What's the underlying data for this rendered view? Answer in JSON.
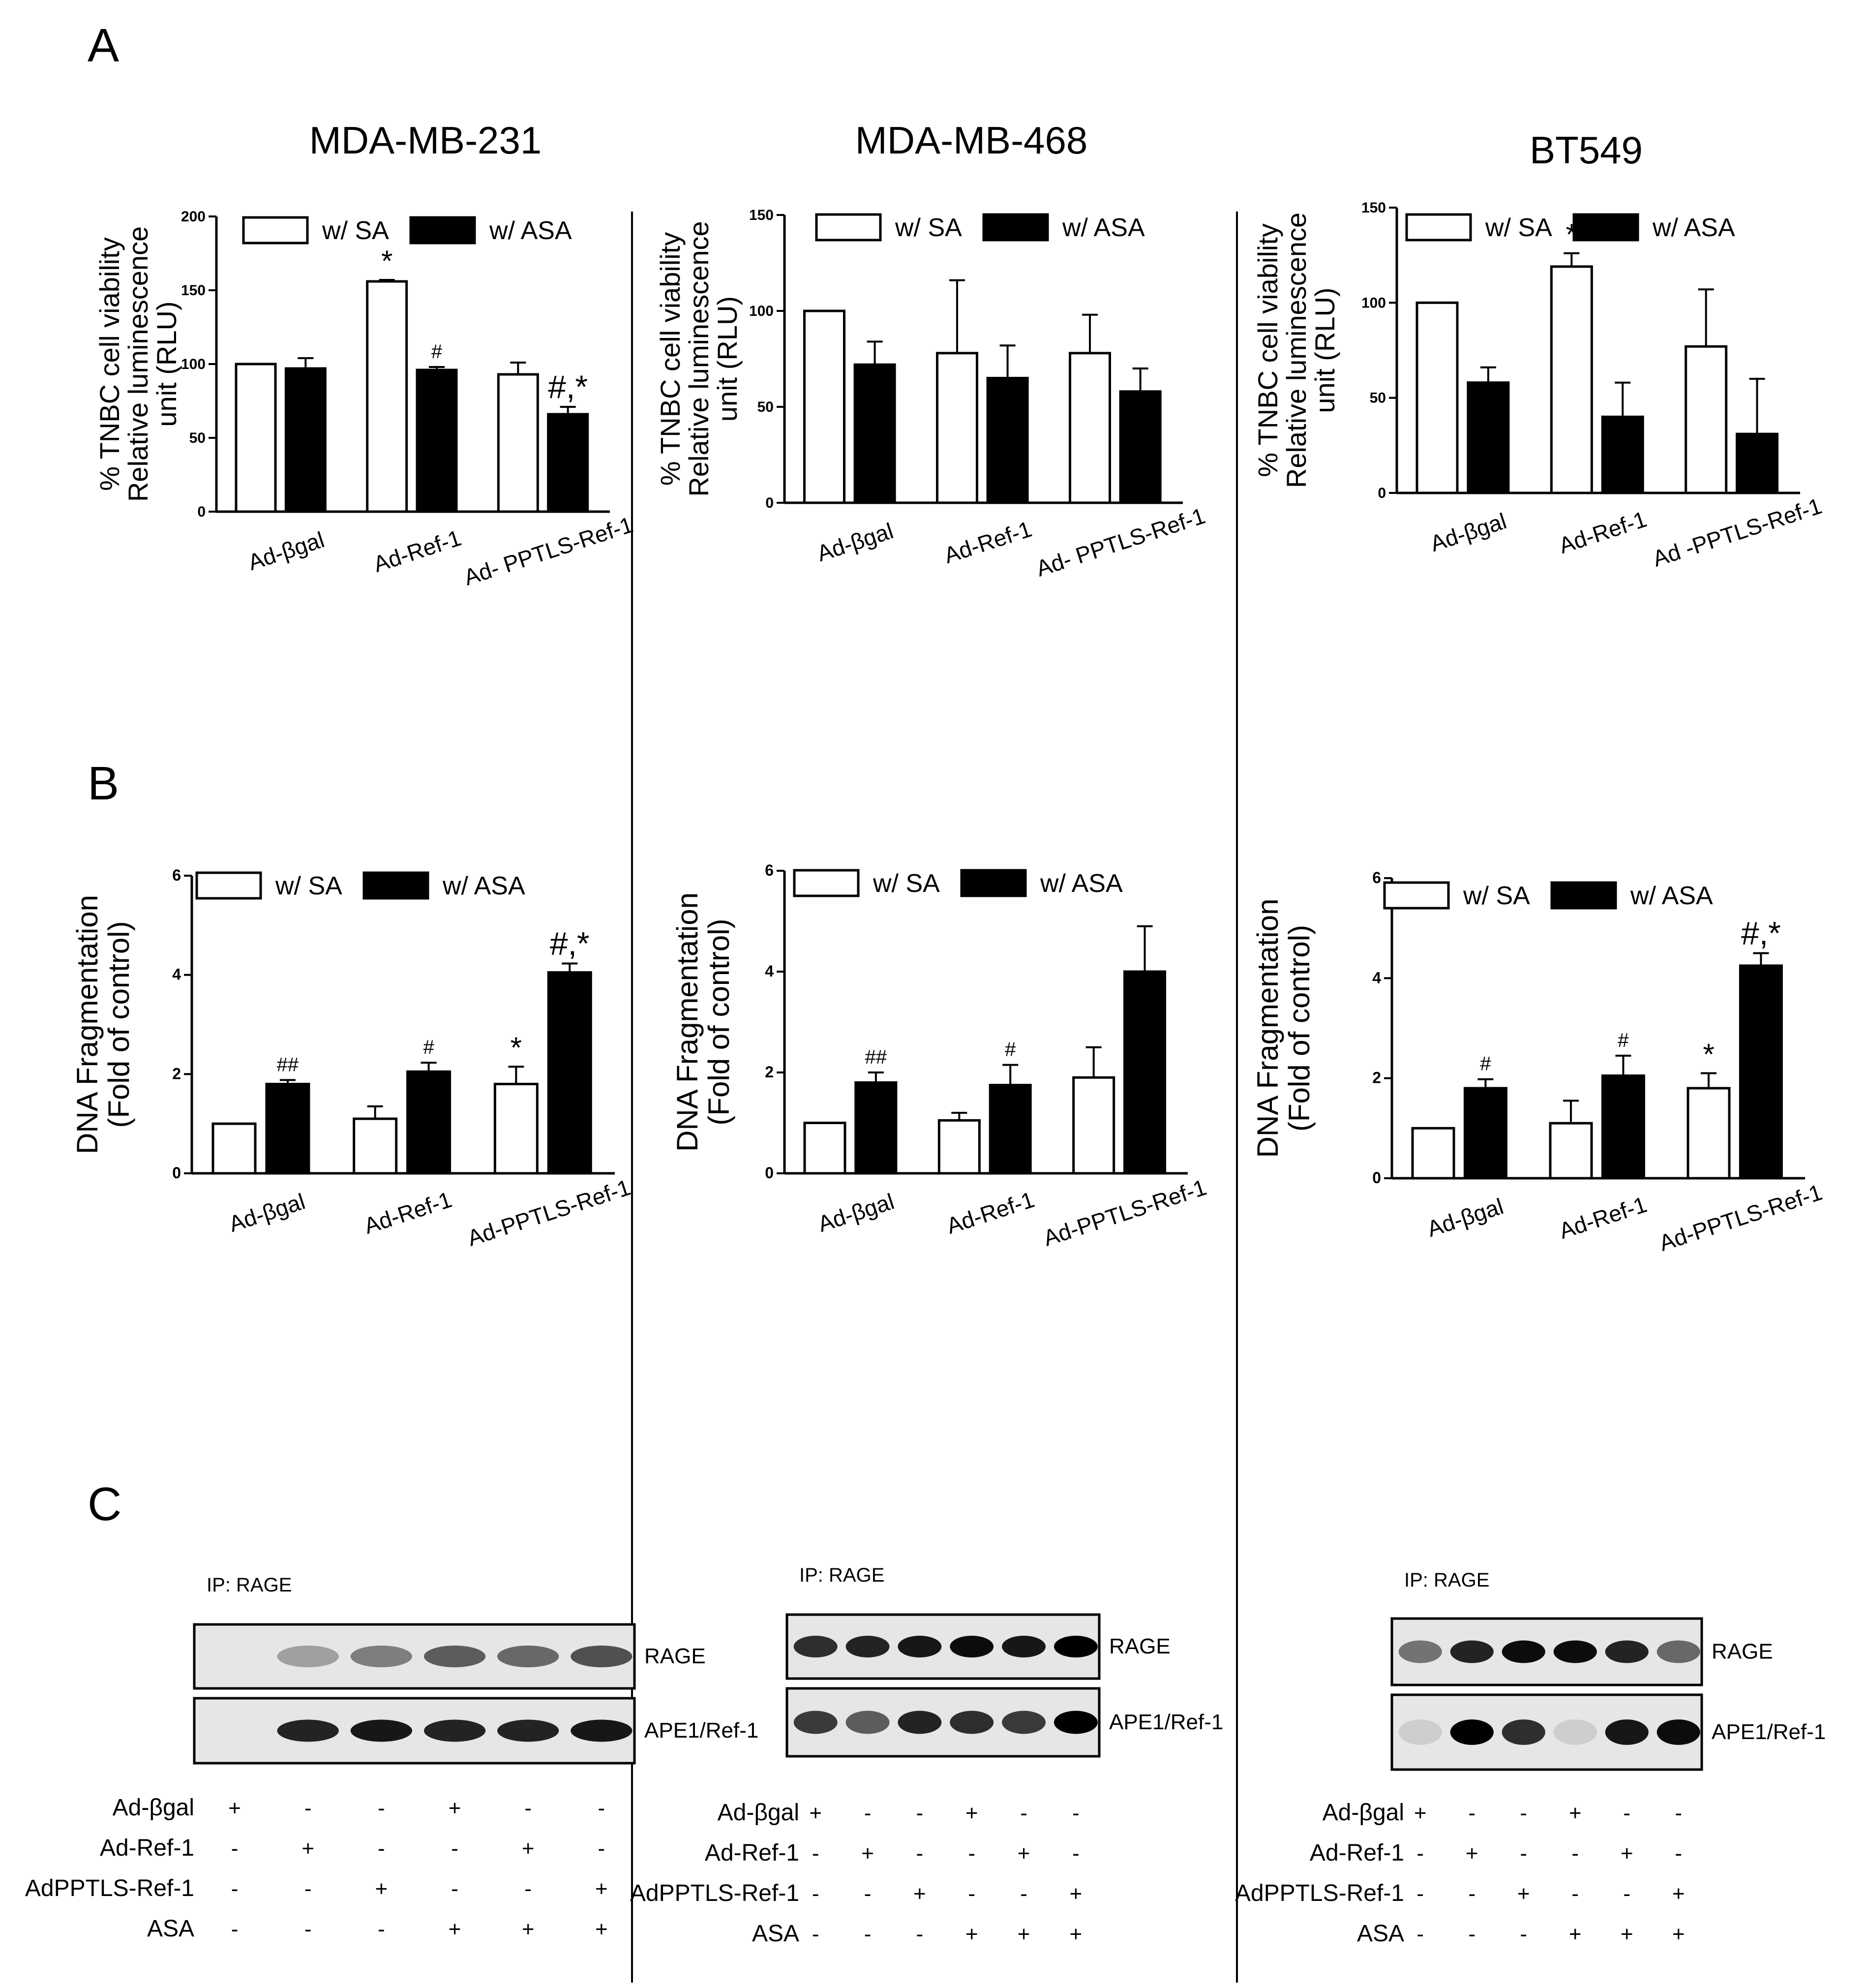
{
  "panel_letters": [
    "A",
    "B",
    "C"
  ],
  "cell_lines": [
    "MDA-MB-231",
    "MDA-MB-468",
    "BT549"
  ],
  "legend": {
    "sa": "w/ SA",
    "asa": "w/ ASA"
  },
  "a_ylabel": [
    "% TNBC cell viability",
    "Relative luminescence",
    "unit (RLU)"
  ],
  "b_ylabel": [
    "DNA Fragmentation",
    "(Fold of control)"
  ],
  "groups": {
    "a231": [
      "Ad-βgal",
      "Ad-Ref-1",
      "Ad- PPTLS-Ref-1"
    ],
    "a468": [
      "Ad-βgal",
      "Ad-Ref-1",
      "Ad- PPTLS-Ref-1"
    ],
    "a549": [
      "Ad-βgal",
      "Ad-Ref-1",
      "Ad -PPTLS-Ref-1"
    ],
    "b": [
      "Ad-βgal",
      "Ad-Ref-1",
      "Ad-PPTLS-Ref-1"
    ]
  },
  "colors": {
    "sa": "#ffffff",
    "asa": "#000000",
    "blot_bg": "#e6e6e6"
  },
  "chart_data": [
    {
      "id": "a231",
      "type": "bar",
      "panel": "A",
      "title": "MDA-MB-231",
      "categories": [
        "Ad-βgal",
        "Ad-Ref-1",
        "Ad- PPTLS-Ref-1"
      ],
      "series": [
        {
          "name": "w/ SA",
          "values": [
            100,
            156,
            93
          ],
          "errors": [
            0,
            1,
            8
          ],
          "annotations": [
            "",
            "*",
            ""
          ]
        },
        {
          "name": "w/ ASA",
          "values": [
            97,
            96,
            66
          ],
          "errors": [
            7,
            2,
            5
          ],
          "annotations": [
            "",
            "#",
            "#,*"
          ]
        }
      ],
      "ylim": [
        0,
        200
      ],
      "yticks": [
        0,
        50,
        100,
        150,
        200
      ]
    },
    {
      "id": "a468",
      "type": "bar",
      "panel": "A",
      "title": "MDA-MB-468",
      "categories": [
        "Ad-βgal",
        "Ad-Ref-1",
        "Ad- PPTLS-Ref-1"
      ],
      "series": [
        {
          "name": "w/ SA",
          "values": [
            100,
            78,
            78
          ],
          "errors": [
            0,
            38,
            20
          ],
          "annotations": [
            "",
            "",
            ""
          ]
        },
        {
          "name": "w/ ASA",
          "values": [
            72,
            65,
            58
          ],
          "errors": [
            12,
            17,
            12
          ],
          "annotations": [
            "",
            "",
            ""
          ]
        }
      ],
      "ylim": [
        0,
        150
      ],
      "yticks": [
        0,
        50,
        100,
        150
      ]
    },
    {
      "id": "a549",
      "type": "bar",
      "panel": "A",
      "title": "BT549",
      "categories": [
        "Ad-βgal",
        "Ad-Ref-1",
        "Ad -PPTLS-Ref-1"
      ],
      "series": [
        {
          "name": "w/ SA",
          "values": [
            100,
            119,
            77
          ],
          "errors": [
            0,
            7,
            30
          ],
          "annotations": [
            "",
            "*",
            ""
          ]
        },
        {
          "name": "w/ ASA",
          "values": [
            58,
            40,
            31
          ],
          "errors": [
            8,
            18,
            29
          ],
          "annotations": [
            "",
            "",
            ""
          ]
        }
      ],
      "ylim": [
        0,
        150
      ],
      "yticks": [
        0,
        50,
        100,
        150
      ]
    },
    {
      "id": "b231",
      "type": "bar",
      "panel": "B",
      "categories": [
        "Ad-βgal",
        "Ad-Ref-1",
        "Ad-PPTLS-Ref-1"
      ],
      "series": [
        {
          "name": "w/ SA",
          "values": [
            1.0,
            1.1,
            1.8
          ],
          "errors": [
            0,
            0.25,
            0.35
          ],
          "annotations": [
            "",
            "",
            "*"
          ]
        },
        {
          "name": "w/ ASA",
          "values": [
            1.8,
            2.05,
            4.05
          ],
          "errors": [
            0.08,
            0.18,
            0.18
          ],
          "annotations": [
            "##",
            "#",
            "#,*"
          ]
        }
      ],
      "ylim": [
        0,
        6
      ],
      "yticks": [
        0,
        2,
        4,
        6
      ]
    },
    {
      "id": "b468",
      "type": "bar",
      "panel": "B",
      "categories": [
        "Ad-βgal",
        "Ad-Ref-1",
        "Ad-PPTLS-Ref-1"
      ],
      "series": [
        {
          "name": "w/ SA",
          "values": [
            1.0,
            1.05,
            1.9
          ],
          "errors": [
            0,
            0.15,
            0.6
          ],
          "annotations": [
            "",
            "",
            ""
          ]
        },
        {
          "name": "w/ ASA",
          "values": [
            1.8,
            1.75,
            4.0
          ],
          "errors": [
            0.2,
            0.4,
            0.9
          ],
          "annotations": [
            "##",
            "#",
            ""
          ]
        }
      ],
      "ylim": [
        0,
        6
      ],
      "yticks": [
        0,
        2,
        4,
        6
      ]
    },
    {
      "id": "b549",
      "type": "bar",
      "panel": "B",
      "categories": [
        "Ad-βgal",
        "Ad-Ref-1",
        "Ad-PPTLS-Ref-1"
      ],
      "series": [
        {
          "name": "w/ SA",
          "values": [
            1.0,
            1.1,
            1.8
          ],
          "errors": [
            0,
            0.45,
            0.3
          ],
          "annotations": [
            "",
            "",
            "*"
          ]
        },
        {
          "name": "w/ ASA",
          "values": [
            1.8,
            2.05,
            4.25
          ],
          "errors": [
            0.18,
            0.4,
            0.25
          ],
          "annotations": [
            "#",
            "#",
            "#,*"
          ]
        }
      ],
      "ylim": [
        0,
        6
      ],
      "yticks": [
        0,
        2,
        4,
        6
      ]
    }
  ],
  "blots": {
    "ip_label": "IP: RAGE",
    "band_labels": [
      "RAGE",
      "APE1/Ref-1"
    ],
    "row_labels": [
      "Ad-βgal",
      "Ad-Ref-1",
      "AdPPTLS-Ref-1",
      "ASA"
    ],
    "signs": [
      [
        "+",
        "-",
        "-",
        "+",
        "-",
        "-"
      ],
      [
        "-",
        "+",
        "-",
        "-",
        "+",
        "-"
      ],
      [
        "-",
        "-",
        "+",
        "-",
        "-",
        "+"
      ],
      [
        "-",
        "-",
        "-",
        "+",
        "+",
        "+"
      ]
    ],
    "intensities": [
      {
        "rage": [
          0.0,
          0.3,
          0.45,
          0.6,
          0.55,
          0.65
        ],
        "ape1": [
          0.0,
          0.85,
          0.9,
          0.85,
          0.85,
          0.9
        ]
      },
      {
        "rage": [
          0.8,
          0.85,
          0.9,
          0.95,
          0.9,
          1.0
        ],
        "ape1": [
          0.75,
          0.6,
          0.85,
          0.8,
          0.75,
          1.0
        ]
      },
      {
        "rage": [
          0.5,
          0.85,
          0.95,
          0.95,
          0.85,
          0.55
        ],
        "ape1": [
          0.1,
          1.0,
          0.8,
          0.1,
          0.9,
          0.95
        ]
      }
    ]
  }
}
